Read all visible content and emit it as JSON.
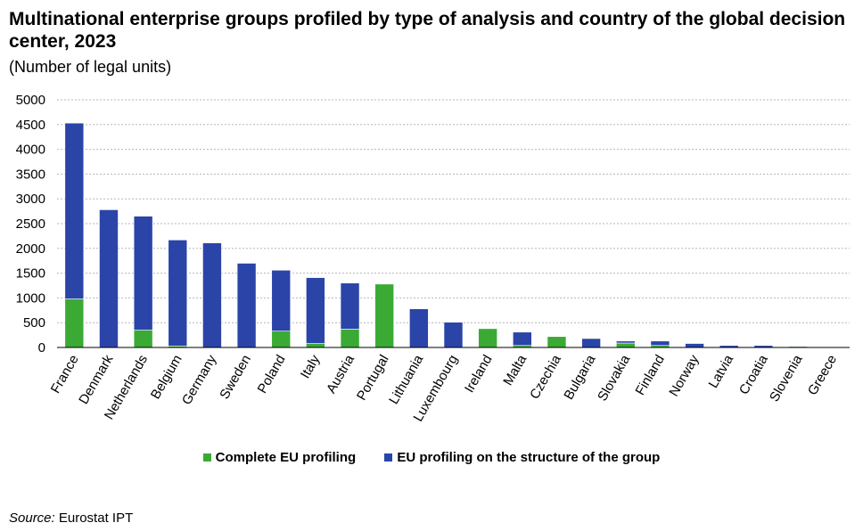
{
  "title": "Multinational enterprise groups profiled by type of analysis  and country of the global decision center, 2023",
  "subtitle": "(Number  of legal units)",
  "source_label": "Source:",
  "source_text": " Eurostat IPT",
  "colors": {
    "complete": "#3aaa35",
    "structure": "#2a44a8"
  },
  "chart_data": {
    "type": "bar",
    "stacked": true,
    "categories": [
      "France",
      "Denmark",
      "Netherlands",
      "Belgium",
      "Germany",
      "Sweden",
      "Poland",
      "Italy",
      "Austria",
      "Portugal",
      "Lithuania",
      "Luxembourg",
      "Ireland",
      "Malta",
      "Czechia",
      "Bulgaria",
      "Slovakia",
      "Finland",
      "Norway",
      "Latvia",
      "Croatia",
      "Slovenia",
      "Greece"
    ],
    "series": [
      {
        "name": "Complete EU profiling",
        "values": [
          980,
          0,
          350,
          30,
          0,
          0,
          330,
          80,
          370,
          1280,
          0,
          0,
          380,
          40,
          220,
          0,
          90,
          40,
          0,
          0,
          0,
          20,
          0
        ]
      },
      {
        "name": "EU profiling on the structure of the group",
        "values": [
          3550,
          2780,
          2300,
          2140,
          2110,
          1700,
          1230,
          1330,
          930,
          0,
          780,
          510,
          0,
          270,
          0,
          180,
          40,
          90,
          80,
          40,
          40,
          0,
          0
        ]
      }
    ],
    "yticks": [
      0,
      500,
      1000,
      1500,
      2000,
      2500,
      3000,
      3500,
      4000,
      4500,
      5000
    ],
    "ylim": [
      0,
      5000
    ],
    "grid": true,
    "legend_position": "bottom"
  }
}
